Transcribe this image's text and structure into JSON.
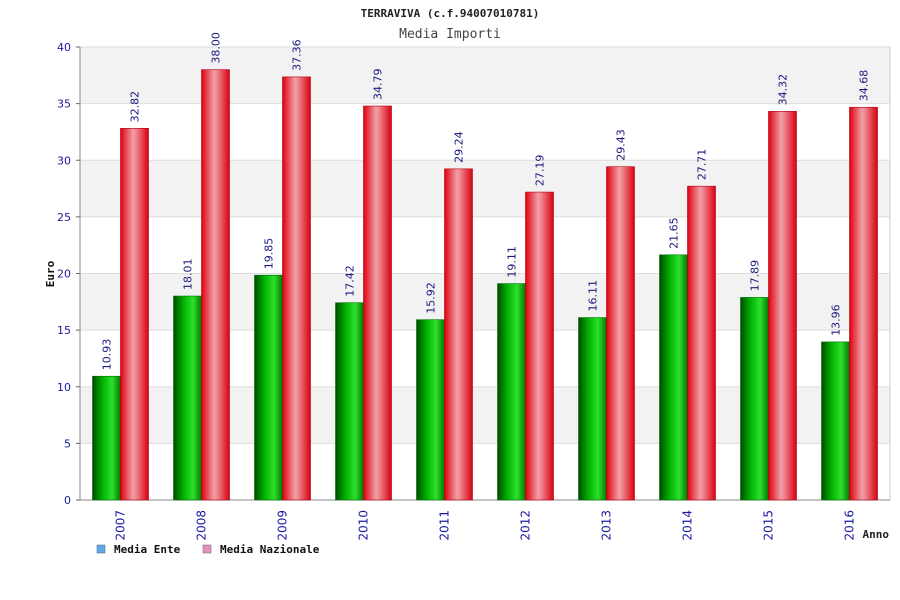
{
  "chart_data": {
    "type": "bar",
    "title": "TERRAVIVA (c.f.94007010781)",
    "subtitle": "Media Importi",
    "ylabel": "Euro",
    "xlabel": "Anno",
    "ylim": [
      0,
      40
    ],
    "yticks": [
      0,
      5,
      10,
      15,
      20,
      25,
      30,
      35,
      40
    ],
    "categories": [
      "2007",
      "2008",
      "2009",
      "2010",
      "2011",
      "2012",
      "2013",
      "2014",
      "2015",
      "2016"
    ],
    "series": [
      {
        "name": "Media Ente",
        "values": [
          10.93,
          18.01,
          19.85,
          17.42,
          15.92,
          19.11,
          16.11,
          21.65,
          17.89,
          13.96
        ],
        "labels": [
          "10.93",
          "18.01",
          "19.85",
          "17.42",
          "15.92",
          "19.11",
          "16.11",
          "21.65",
          "17.89",
          "13.96"
        ],
        "color": "#00a000",
        "legend_color": "#5ea8f0"
      },
      {
        "name": "Media Nazionale",
        "values": [
          32.82,
          38.0,
          37.36,
          34.79,
          29.24,
          27.19,
          29.43,
          27.71,
          34.32,
          34.68
        ],
        "labels": [
          "32.82",
          "38.00",
          "37.36",
          "34.79",
          "29.24",
          "27.19",
          "29.43",
          "27.71",
          "34.32",
          "34.68"
        ],
        "color": "#e81020",
        "legend_color": "#e890c0"
      }
    ],
    "grid": true,
    "legend_position": "bottom-left"
  }
}
